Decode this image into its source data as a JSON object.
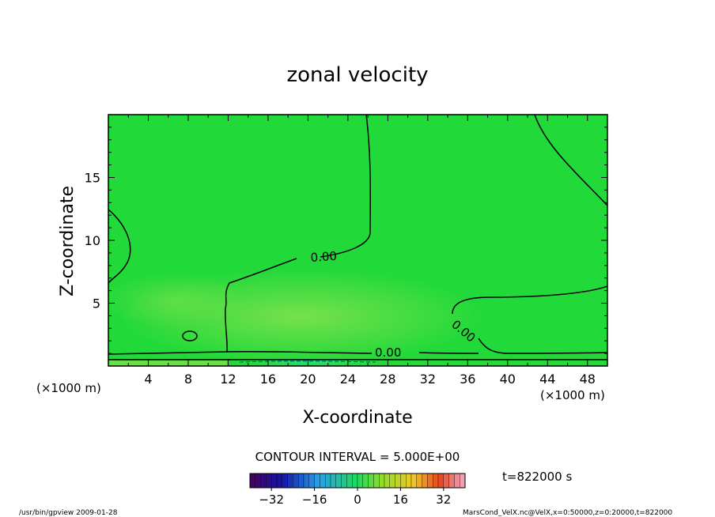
{
  "chart_data": {
    "type": "heatmap",
    "title": "zonal velocity",
    "xlabel": "X-coordinate",
    "ylabel": "Z-coordinate",
    "x_unit_left": "(×1000 m)",
    "x_unit_right": "(×1000 m)",
    "xlim": [
      0,
      50
    ],
    "ylim": [
      0,
      20
    ],
    "x_ticks": [
      4,
      8,
      12,
      16,
      20,
      24,
      28,
      32,
      36,
      40,
      44,
      48
    ],
    "y_ticks": [
      5,
      10,
      15
    ],
    "contour_interval_text": "CONTOUR INTERVAL = 5.000E+00",
    "time_text": "t=822000 s",
    "contour_labels": [
      "0.00",
      "0.00",
      "0.00"
    ],
    "colorbar": {
      "range": [
        -40,
        40
      ],
      "step": 2,
      "tick_values": [
        -32,
        -16,
        0,
        16,
        32
      ],
      "tick_labels": [
        "−32",
        "−16",
        "0",
        "16",
        "32"
      ]
    },
    "field_summary": "near-zero velocity everywhere; slightly positive in mid-domain lower levels, slightly negative band near ground at x≈12–28"
  },
  "footer": {
    "left": "/usr/bin/gpview   2009-01-28",
    "right": "MarsCond_VelX.nc@VelX,x=0:50000,z=0:20000,t=822000"
  },
  "colors": {
    "field": "#22d93a",
    "field_warm": "#86e24e",
    "field_cool": "#2ee08c"
  }
}
